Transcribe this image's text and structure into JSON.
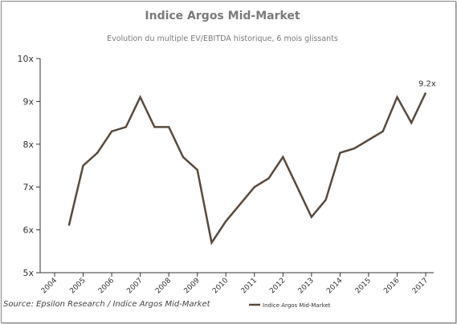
{
  "chart_data": {
    "type": "line",
    "title": "Indice Argos Mid-Market",
    "subtitle": "Evolution du multiple EV/EBITDA historique, 6 mois glissants",
    "source": "Source: Epsilon Research / Indice Argos Mid-Market",
    "x_tick_labels": [
      "2004",
      "2005",
      "2006",
      "2007",
      "2008",
      "2009",
      "2010",
      "2011",
      "2012",
      "2013",
      "2014",
      "2015",
      "2016",
      "2017"
    ],
    "y_tick_labels": [
      "5x",
      "6x",
      "7x",
      "8x",
      "9x",
      "10x"
    ],
    "ylim": [
      5,
      10
    ],
    "xlim": [
      2004,
      2017
    ],
    "grid": false,
    "legend_position": "bottom",
    "series": [
      {
        "name": "Indice Argos Mid-Market",
        "color": "#584a3e",
        "x": [
          2004.5,
          2005.0,
          2005.5,
          2006.0,
          2006.5,
          2007.0,
          2007.5,
          2008.0,
          2008.5,
          2009.0,
          2009.5,
          2010.0,
          2010.5,
          2011.0,
          2011.5,
          2012.0,
          2012.5,
          2013.0,
          2013.5,
          2014.0,
          2014.5,
          2015.0,
          2015.5,
          2016.0,
          2016.5,
          2017.0
        ],
        "values": [
          6.1,
          7.5,
          7.8,
          8.3,
          8.4,
          9.1,
          8.4,
          8.4,
          7.7,
          7.4,
          5.7,
          6.2,
          6.6,
          7.0,
          7.2,
          7.7,
          7.0,
          6.3,
          6.7,
          7.8,
          7.9,
          8.1,
          8.3,
          9.1,
          8.5,
          9.2
        ]
      }
    ],
    "annotations": [
      {
        "text": "9.2x",
        "x": 2017.0,
        "y": 9.2
      }
    ]
  }
}
